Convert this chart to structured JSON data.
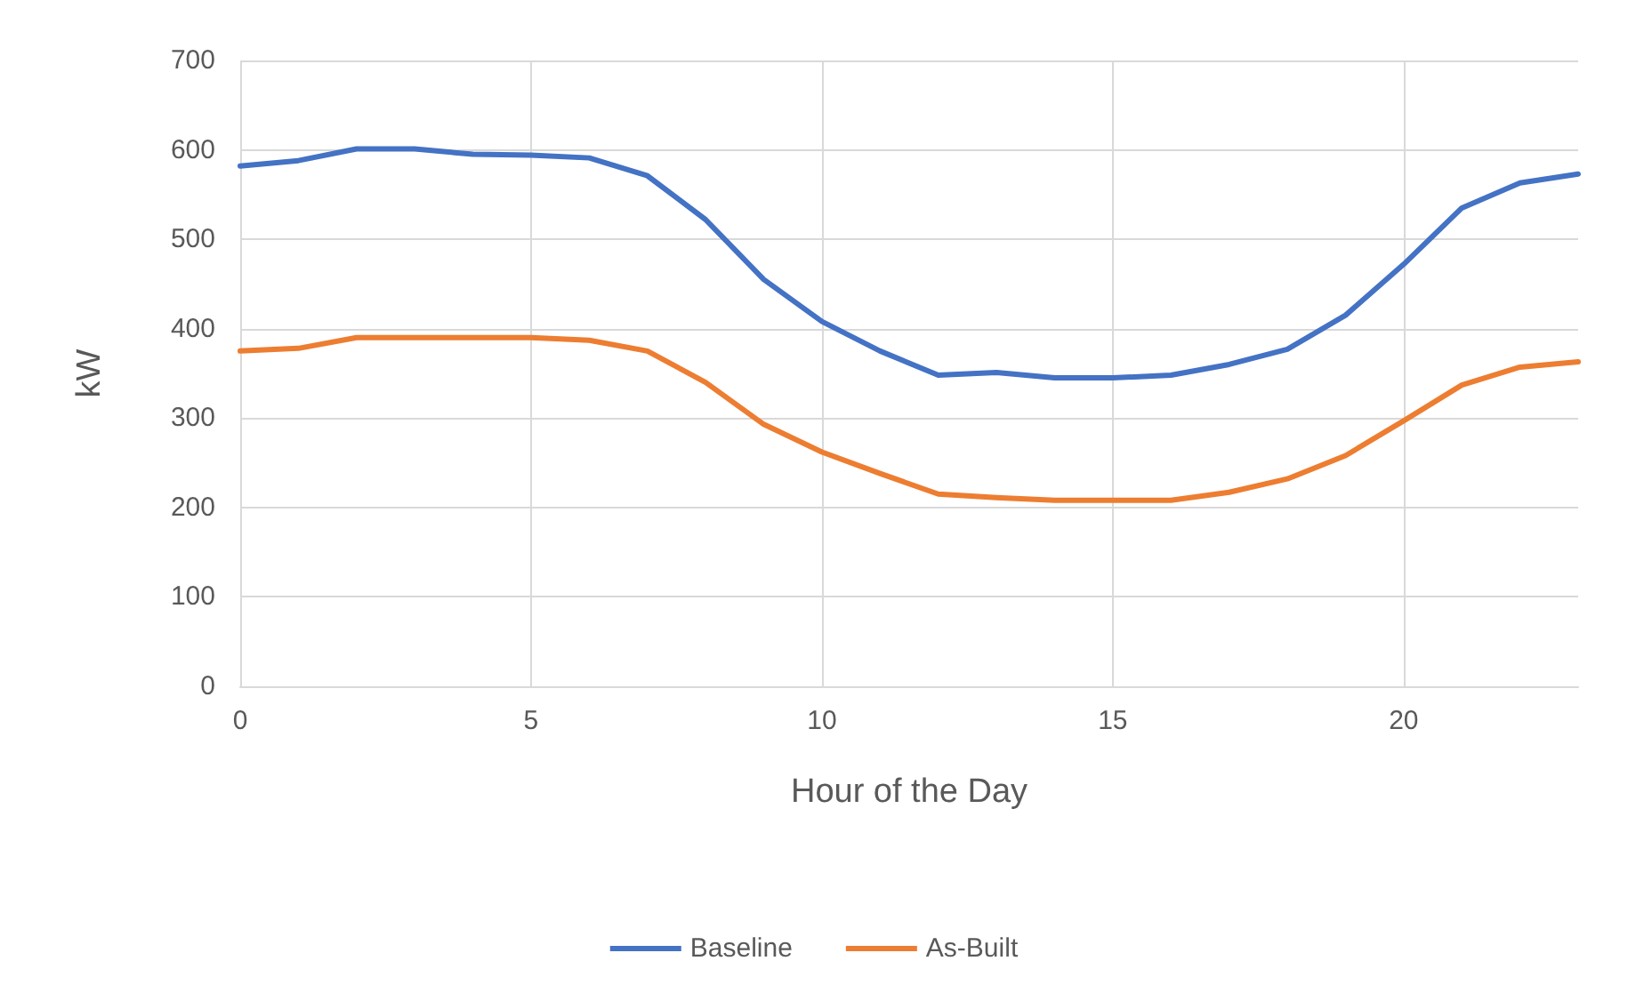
{
  "chart_data": {
    "type": "line",
    "xlabel": "Hour of the Day",
    "ylabel": "kW",
    "x": [
      0,
      1,
      2,
      3,
      4,
      5,
      6,
      7,
      8,
      9,
      10,
      11,
      12,
      13,
      14,
      15,
      16,
      17,
      18,
      19,
      20,
      21,
      22,
      23
    ],
    "series": [
      {
        "name": "Baseline",
        "color": "#4472c4",
        "values": [
          582,
          588,
          601,
          601,
          595,
          594,
          591,
          571,
          522,
          455,
          408,
          375,
          348,
          351,
          345,
          345,
          348,
          360,
          377,
          415,
          472,
          535,
          563,
          573
        ]
      },
      {
        "name": "As-Built",
        "color": "#ed7d31",
        "values": [
          375,
          378,
          390,
          390,
          390,
          390,
          387,
          375,
          340,
          293,
          262,
          238,
          215,
          211,
          208,
          208,
          208,
          217,
          232,
          258,
          297,
          337,
          357,
          363
        ]
      }
    ],
    "xlim": [
      0,
      23
    ],
    "xticks": [
      0,
      5,
      10,
      15,
      20
    ],
    "ylim": [
      0,
      700
    ],
    "yticks": [
      0,
      100,
      200,
      300,
      400,
      500,
      600,
      700
    ],
    "grid": true,
    "legend": "bottom",
    "marker": "none",
    "line_style": "solid"
  }
}
